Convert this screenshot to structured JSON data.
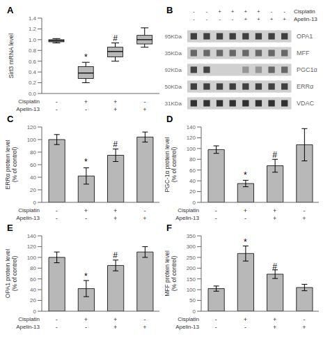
{
  "chart_data": [
    {
      "type": "box",
      "title": "A",
      "ylabel": "Sirt3 mRNA level",
      "categories": [
        [
          "-",
          "-"
        ],
        [
          "+",
          "-"
        ],
        [
          "+",
          "+"
        ],
        [
          "-",
          "+"
        ]
      ],
      "category_rows": [
        "Cisplatin",
        "Apelin-13"
      ],
      "boxes": [
        {
          "med": 0.98,
          "q1": 0.96,
          "q3": 1.0,
          "whislo": 0.94,
          "whishi": 1.02
        },
        {
          "med": 0.38,
          "q1": 0.28,
          "q3": 0.5,
          "whislo": 0.2,
          "whishi": 0.58
        },
        {
          "med": 0.78,
          "q1": 0.68,
          "q3": 0.86,
          "whislo": 0.6,
          "whishi": 0.94
        },
        {
          "med": 1.0,
          "q1": 0.92,
          "q3": 1.08,
          "whislo": 0.86,
          "whishi": 1.22
        }
      ],
      "color": "#b8b8b8",
      "ylim": [
        0,
        1.4
      ],
      "yticks": [
        {
          "value": 0,
          "label": "0.0"
        },
        0.2,
        0.4,
        0.6,
        0.8,
        {
          "value": 1,
          "label": "1.0"
        },
        1.2,
        1.4
      ],
      "annotations": [
        {
          "text": "*",
          "x": 1,
          "y": 0.62
        },
        {
          "text": "#",
          "x": 2,
          "y": 0.97
        }
      ]
    },
    {
      "type": "blot",
      "title": "B",
      "categories": [
        [
          "-",
          "-"
        ],
        [
          "-",
          "-"
        ],
        [
          "+",
          "-"
        ],
        [
          "+",
          "-"
        ],
        [
          "+",
          "+"
        ],
        [
          "+",
          "+"
        ],
        [
          "-",
          "+"
        ],
        [
          "-",
          "+"
        ]
      ],
      "category_rows": [
        "Cisplatin",
        "Apelin-13"
      ],
      "series": [
        {
          "name": "OPA1",
          "kda": "95KDa",
          "values": [
            0.82,
            0.82,
            0.82,
            0.82,
            0.82,
            0.82,
            0.82,
            0.82
          ]
        },
        {
          "name": "MFF",
          "kda": "35KDa",
          "values": [
            0.65,
            0.65,
            0.65,
            0.65,
            0.65,
            0.65,
            0.65,
            0.65
          ]
        },
        {
          "name": "PGC1α",
          "kda": "92KDa",
          "values": [
            0.8,
            0.8,
            0.2,
            0.2,
            0.45,
            0.45,
            0.65,
            0.65
          ]
        },
        {
          "name": "ERRα",
          "kda": "50KDa",
          "values": [
            0.82,
            0.82,
            0.82,
            0.82,
            0.82,
            0.82,
            0.82,
            0.82
          ]
        },
        {
          "name": "VDAC",
          "kda": "31KDa",
          "values": [
            0.88,
            0.88,
            0.88,
            0.88,
            0.88,
            0.88,
            0.88,
            0.88
          ]
        }
      ]
    },
    {
      "type": "bar",
      "title": "C",
      "ylabel": "ERRα protein level\n(% of control)",
      "categories": [
        [
          "-",
          "-"
        ],
        [
          "+",
          "-"
        ],
        [
          "+",
          "+"
        ],
        [
          "-",
          "+"
        ]
      ],
      "category_rows": [
        "Cisplatin",
        "Apelin-13"
      ],
      "values": [
        100,
        42,
        75,
        104
      ],
      "errors": [
        8,
        13,
        10,
        8
      ],
      "color": "#b8b8b8",
      "ylim": [
        0,
        120
      ],
      "yticks": [
        0,
        20,
        40,
        60,
        80,
        100,
        120
      ],
      "annotations": [
        {
          "text": "*",
          "x": 1,
          "y": 60
        },
        {
          "text": "#",
          "x": 2,
          "y": 88
        }
      ]
    },
    {
      "type": "bar",
      "title": "D",
      "ylabel": "PGC-1α protein level\n(% of control)",
      "categories": [
        [
          "-",
          "-"
        ],
        [
          "+",
          "-"
        ],
        [
          "+",
          "+"
        ],
        [
          "-",
          "+"
        ]
      ],
      "category_rows": [
        "Cisplatin",
        "Apelin-13"
      ],
      "values": [
        98,
        35,
        68,
        107
      ],
      "errors": [
        7,
        6,
        12,
        30
      ],
      "color": "#b8b8b8",
      "ylim": [
        0,
        140
      ],
      "yticks": [
        0,
        20,
        40,
        60,
        80,
        100,
        120,
        140
      ],
      "annotations": [
        {
          "text": "*",
          "x": 1,
          "y": 46
        },
        {
          "text": "#",
          "x": 2,
          "y": 83
        }
      ]
    },
    {
      "type": "bar",
      "title": "E",
      "ylabel": "OPA1 protein level\n(% of control)",
      "categories": [
        [
          "-",
          "-"
        ],
        [
          "+",
          "-"
        ],
        [
          "+",
          "+"
        ],
        [
          "-",
          "+"
        ]
      ],
      "category_rows": [
        "Cisplatin",
        "Apelin-13"
      ],
      "values": [
        100,
        42,
        85,
        110
      ],
      "errors": [
        10,
        15,
        10,
        10
      ],
      "color": "#b8b8b8",
      "ylim": [
        0,
        140
      ],
      "yticks": [
        0,
        20,
        40,
        60,
        80,
        100,
        120,
        140
      ],
      "annotations": [
        {
          "text": "*",
          "x": 1,
          "y": 60
        },
        {
          "text": "#",
          "x": 2,
          "y": 98
        }
      ]
    },
    {
      "type": "bar",
      "title": "F",
      "ylabel": "MFF protein level\n(% of control)",
      "categories": [
        [
          "-",
          "-"
        ],
        [
          "+",
          "-"
        ],
        [
          "+",
          "+"
        ],
        [
          "-",
          "+"
        ]
      ],
      "category_rows": [
        "Cisplatin",
        "Apelin-13"
      ],
      "values": [
        105,
        268,
        172,
        110
      ],
      "errors": [
        12,
        35,
        20,
        15
      ],
      "color": "#b8b8b8",
      "ylim": [
        0,
        350
      ],
      "yticks": [
        0,
        50,
        100,
        150,
        200,
        250,
        300,
        350
      ],
      "annotations": [
        {
          "text": "*",
          "x": 1,
          "y": 308
        },
        {
          "text": "#",
          "x": 2,
          "y": 196
        }
      ]
    }
  ]
}
